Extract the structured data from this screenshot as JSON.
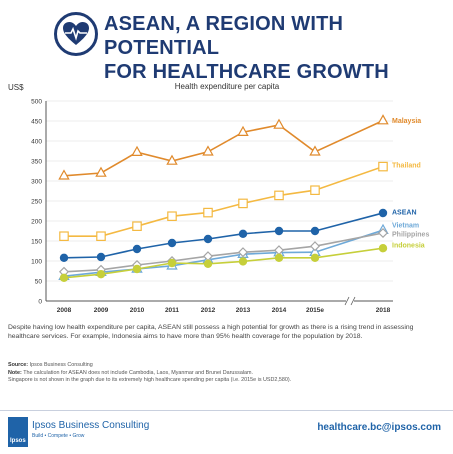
{
  "header": {
    "title_line1": "ASEAN, A REGION WITH POTENTIAL",
    "title_line2": "FOR HEALTHCARE GROWTH"
  },
  "chart_data": {
    "type": "line",
    "title": "Health expenditure per capita",
    "ylabel": "US$",
    "xlabel": "",
    "categories": [
      "2008",
      "2009",
      "2010",
      "2011",
      "2012",
      "2013",
      "2014",
      "2015e",
      "2018"
    ],
    "ylim": [
      0,
      500
    ],
    "yticks": [
      0,
      50,
      100,
      150,
      200,
      250,
      300,
      350,
      400,
      450,
      500
    ],
    "axis_break_before": "2018",
    "grid": true,
    "series": [
      {
        "name": "Malaysia",
        "color": "#e08a2c",
        "marker": "triangle",
        "values": [
          313,
          320,
          372,
          350,
          373,
          422,
          440,
          373,
          451
        ]
      },
      {
        "name": "Thailand",
        "color": "#f4b942",
        "marker": "square",
        "values": [
          162,
          162,
          187,
          212,
          221,
          244,
          264,
          277,
          336
        ]
      },
      {
        "name": "ASEAN",
        "color": "#1f63a8",
        "marker": "circle",
        "values": [
          108,
          110,
          130,
          145,
          155,
          168,
          175,
          175,
          220
        ]
      },
      {
        "name": "Vietnam",
        "color": "#6ea9d8",
        "marker": "triangle",
        "values": [
          62,
          72,
          80,
          88,
          103,
          117,
          121,
          122,
          177
        ]
      },
      {
        "name": "Philippines",
        "color": "#a5a5a5",
        "marker": "diamond",
        "values": [
          73,
          78,
          90,
          100,
          112,
          122,
          127,
          137,
          170
        ]
      },
      {
        "name": "Indonesia",
        "color": "#c6cf3a",
        "marker": "circle",
        "values": [
          58,
          67,
          80,
          95,
          93,
          99,
          108,
          108,
          132
        ]
      }
    ]
  },
  "body_text": "Despite having low health expenditure per capita, ASEAN still possess a high potential for growth as there is a rising trend in assessing healthcare services. For example, Indonesia aims to have more than 95% health coverage for the population by 2018.",
  "source": {
    "label": "Source:",
    "text": "Ipsos Business Consulting",
    "note_label": "Note:",
    "note_text": "The calculation for ASEAN does not include Cambodia, Laos, Myanmar and Brunei Darussalam.",
    "note_text2": "Singapore is not shown in the graph due to its extremely high healthcare spending per capita (i.e. 2015e is USD2,580)."
  },
  "footer": {
    "logo_text": "Ipsos",
    "brand": "Ipsos Business Consulting",
    "tagline": "Build • Compete • Grow",
    "email": "healthcare.bc@ipsos.com"
  }
}
